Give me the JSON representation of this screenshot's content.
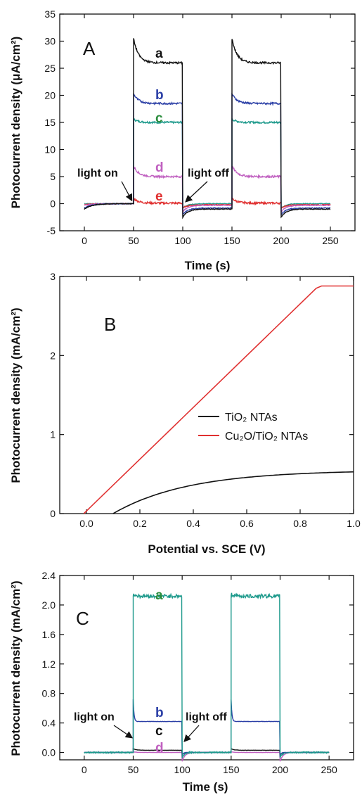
{
  "colors": {
    "a": "#111111",
    "b": "#2b3fa6",
    "c": "#1e9a8c",
    "c_label": "#2a8c3c",
    "d": "#c060c0",
    "e": "#e03030",
    "tio2": "#111111",
    "cu2o": "#e03030",
    "c_a": "#1e9a8c",
    "c_a_label": "#2a8c3c"
  },
  "chart_data": [
    {
      "panel": "A",
      "type": "line",
      "xlabel": "Time (s)",
      "ylabel": "Photocurrent density (μA/cm²)",
      "xlim": [
        -25,
        275
      ],
      "ylim": [
        -5,
        35
      ],
      "xticks": [
        "0",
        "50",
        "100",
        "150",
        "200",
        "250"
      ],
      "yticks": [
        "-5",
        "0",
        "5",
        "10",
        "15",
        "20",
        "25",
        "30",
        "35"
      ],
      "light_on_intervals": [
        [
          50,
          100
        ],
        [
          150,
          200
        ]
      ],
      "series": [
        {
          "name": "a",
          "dark": -1.0,
          "spike": 30.5,
          "steady": 26.0,
          "trough": -2.5
        },
        {
          "name": "b",
          "dark": -0.8,
          "spike": 20.3,
          "steady": 18.5,
          "trough": -2.0
        },
        {
          "name": "c",
          "dark": 0.0,
          "spike": 15.6,
          "steady": 15.0,
          "trough": -0.8
        },
        {
          "name": "d",
          "dark": -0.3,
          "spike": 7.0,
          "steady": 5.0,
          "trough": -1.5
        },
        {
          "name": "e",
          "dark": -0.2,
          "spike": 1.0,
          "steady": 0.1,
          "trough": -0.8
        }
      ],
      "annotations": {
        "light_on": "light on",
        "light_off": "light off"
      }
    },
    {
      "panel": "B",
      "type": "line",
      "xlabel": "Potential vs. SCE (V)",
      "ylabel": "Photocurrent density (mA/cm²)",
      "xlim": [
        -0.1,
        1.0
      ],
      "ylim": [
        0,
        3
      ],
      "xticks": [
        "0.0",
        "0.2",
        "0.4",
        "0.6",
        "0.8",
        "1.0"
      ],
      "yticks": [
        "0",
        "1",
        "2",
        "3"
      ],
      "series": [
        {
          "name": "TiO₂ NTAs",
          "x": [
            0.1,
            0.15,
            0.2,
            0.3,
            0.4,
            0.5,
            0.6,
            0.7,
            0.8,
            0.9,
            1.0
          ],
          "y": [
            0,
            0.09,
            0.16,
            0.27,
            0.34,
            0.39,
            0.42,
            0.45,
            0.47,
            0.49,
            0.51
          ]
        },
        {
          "name": "Cu₂O/TiO₂ NTAs",
          "x": [
            -0.01,
            0.86,
            0.88,
            1.0
          ],
          "y": [
            0,
            2.85,
            2.88,
            2.88
          ]
        }
      ]
    },
    {
      "panel": "C",
      "type": "line",
      "xlabel": "Time (s)",
      "ylabel": "Photocurrent density (mA/cm²)",
      "xlim": [
        -25,
        275
      ],
      "ylim": [
        -0.1,
        2.4
      ],
      "xticks": [
        "0",
        "50",
        "100",
        "150",
        "200",
        "250"
      ],
      "yticks": [
        "0.0",
        "0.4",
        "0.8",
        "1.2",
        "1.6",
        "2.0",
        "2.4"
      ],
      "light_on_intervals": [
        [
          50,
          100
        ],
        [
          150,
          200
        ]
      ],
      "series": [
        {
          "name": "a",
          "dark": 0.0,
          "spike": 2.15,
          "steady": 2.12,
          "trough": -0.08
        },
        {
          "name": "b",
          "dark": 0.0,
          "spike": 0.72,
          "steady": 0.42,
          "trough": -0.06
        },
        {
          "name": "c",
          "dark": 0.0,
          "spike": 0.05,
          "steady": 0.03,
          "trough": -0.02
        },
        {
          "name": "d",
          "dark": 0.0,
          "spike": 0.01,
          "steady": 0.0,
          "trough": -0.12
        }
      ],
      "annotations": {
        "light_on": "light on",
        "light_off": "light off"
      }
    }
  ]
}
